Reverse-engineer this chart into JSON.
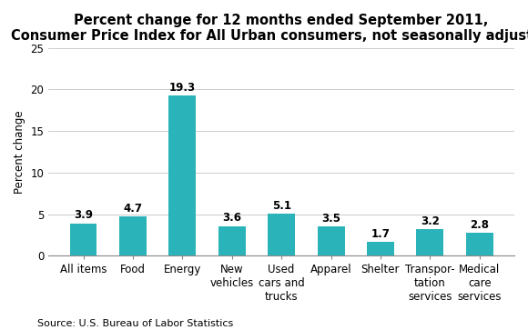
{
  "title": "Percent change for 12 months ended September 2011,\nConsumer Price Index for All Urban consumers, not seasonally adjusted",
  "categories": [
    "All items",
    "Food",
    "Energy",
    "New\nvehicles",
    "Used\ncars and\ntrucks",
    "Apparel",
    "Shelter",
    "Transpor-\ntation\nservices",
    "Medical\ncare\nservices"
  ],
  "values": [
    3.9,
    4.7,
    19.3,
    3.6,
    5.1,
    3.5,
    1.7,
    3.2,
    2.8
  ],
  "bar_color": "#2ab3b8",
  "ylabel": "Percent change",
  "ylim": [
    0,
    25
  ],
  "yticks": [
    0,
    5,
    10,
    15,
    20,
    25
  ],
  "source": "Source: U.S. Bureau of Labor Statistics",
  "title_fontsize": 10.5,
  "label_fontsize": 8.5,
  "tick_fontsize": 8.5,
  "value_label_fontsize": 8.5,
  "source_fontsize": 8,
  "bar_width": 0.55
}
